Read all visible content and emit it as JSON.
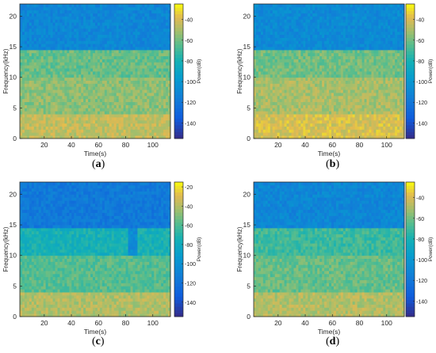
{
  "chart_data": [
    {
      "type": "heatmap",
      "panel": "a",
      "label_prefix": "(",
      "label_letter": "a",
      "label_suffix": ")",
      "xlabel": "Time(s)",
      "ylabel": "Frequency(kHz)",
      "colorbar_label": "Power(dB)",
      "xlim": [
        2,
        113
      ],
      "ylim": [
        0,
        22
      ],
      "xticks": [
        20,
        40,
        60,
        80,
        100
      ],
      "yticks": [
        0,
        5,
        10,
        15,
        20
      ],
      "cticks": [
        -40,
        -60,
        -80,
        -100,
        -120,
        -140
      ],
      "clim": [
        -155,
        -25
      ],
      "colormap": "parula",
      "cutoff_khz": 14.6,
      "bands": [
        {
          "from_khz": 0,
          "to_khz": 4,
          "power_db": -45
        },
        {
          "from_khz": 4,
          "to_khz": 10,
          "power_db": -55
        },
        {
          "from_khz": 10,
          "to_khz": 14.6,
          "power_db": -62
        },
        {
          "from_khz": 14.6,
          "to_khz": 22,
          "power_db": -110
        }
      ]
    },
    {
      "type": "heatmap",
      "panel": "b",
      "label_prefix": "(",
      "label_letter": "b",
      "label_suffix": ")",
      "xlabel": "Time(s)",
      "ylabel": "Frequency(kHz)",
      "colorbar_label": "Power(dB)",
      "xlim": [
        2,
        113
      ],
      "ylim": [
        0,
        22
      ],
      "xticks": [
        20,
        40,
        60,
        80,
        100
      ],
      "yticks": [
        0,
        5,
        10,
        15,
        20
      ],
      "cticks": [
        -40,
        -60,
        -80,
        -100,
        -120,
        -140
      ],
      "clim": [
        -155,
        -25
      ],
      "colormap": "parula",
      "cutoff_khz": 14.6,
      "bands": [
        {
          "from_khz": 0,
          "to_khz": 4,
          "power_db": -40
        },
        {
          "from_khz": 4,
          "to_khz": 10,
          "power_db": -50
        },
        {
          "from_khz": 10,
          "to_khz": 14.6,
          "power_db": -60
        },
        {
          "from_khz": 14.6,
          "to_khz": 22,
          "power_db": -108
        }
      ]
    },
    {
      "type": "heatmap",
      "panel": "c",
      "label_prefix": "(",
      "label_letter": "c",
      "label_suffix": ")",
      "xlabel": "Time(s)",
      "ylabel": "Frequency(kHz)",
      "colorbar_label": "Power(dB)",
      "xlim": [
        2,
        113
      ],
      "ylim": [
        0,
        22
      ],
      "xticks": [
        20,
        40,
        60,
        80,
        100
      ],
      "yticks": [
        0,
        5,
        10,
        15,
        20
      ],
      "cticks": [
        -20,
        -40,
        -60,
        -80,
        -100,
        -120,
        -140
      ],
      "clim": [
        -155,
        -15
      ],
      "colormap": "parula",
      "cutoff_khz": 14.6,
      "bands": [
        {
          "from_khz": 0,
          "to_khz": 4,
          "power_db": -40
        },
        {
          "from_khz": 4,
          "to_khz": 10,
          "power_db": -58
        },
        {
          "from_khz": 10,
          "to_khz": 14.6,
          "power_db": -75
        },
        {
          "from_khz": 14.6,
          "to_khz": 22,
          "power_db": -115
        }
      ]
    },
    {
      "type": "heatmap",
      "panel": "d",
      "label_prefix": "(",
      "label_letter": "d",
      "label_suffix": ")",
      "xlabel": "Time(s)",
      "ylabel": "Frequency(kHz)",
      "colorbar_label": "Power(dB)",
      "xlim": [
        2,
        113
      ],
      "ylim": [
        0,
        22
      ],
      "xticks": [
        20,
        40,
        60,
        80,
        100
      ],
      "yticks": [
        0,
        5,
        10,
        15,
        20
      ],
      "cticks": [
        -40,
        -60,
        -80,
        -100,
        -120,
        -140
      ],
      "clim": [
        -155,
        -25
      ],
      "colormap": "parula",
      "cutoff_khz": 14.6,
      "bands": [
        {
          "from_khz": 0,
          "to_khz": 4,
          "power_db": -48
        },
        {
          "from_khz": 4,
          "to_khz": 10,
          "power_db": -62
        },
        {
          "from_khz": 10,
          "to_khz": 14.6,
          "power_db": -70
        },
        {
          "from_khz": 14.6,
          "to_khz": 22,
          "power_db": -110
        }
      ]
    }
  ]
}
